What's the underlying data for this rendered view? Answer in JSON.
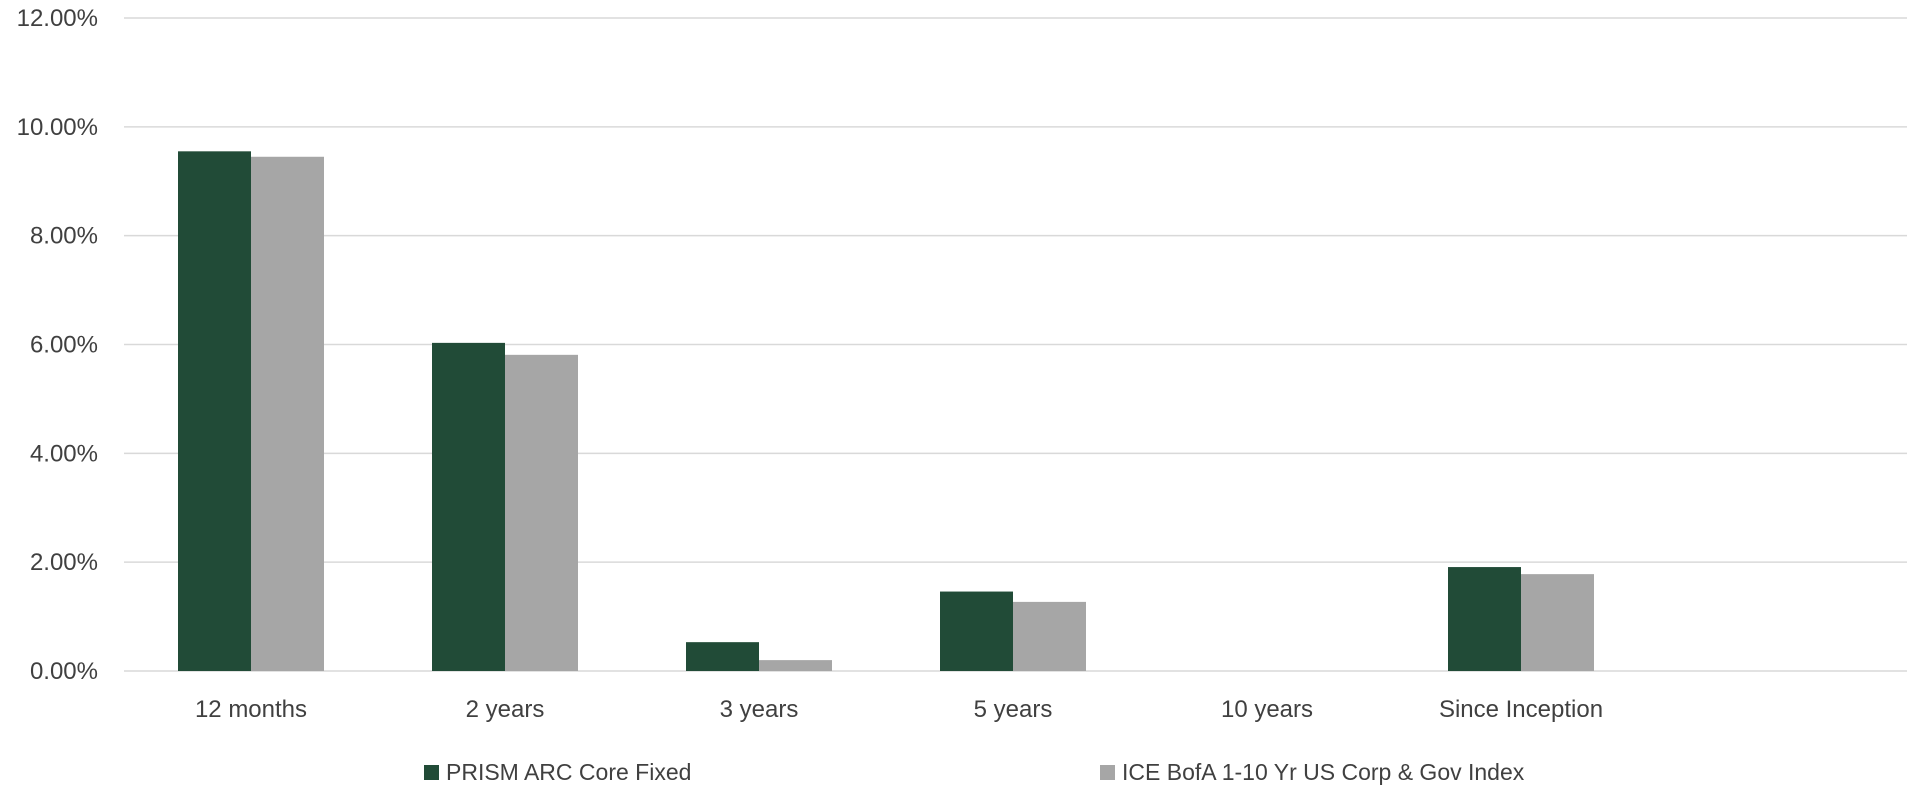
{
  "chart_data": {
    "type": "bar",
    "title": "",
    "xlabel": "",
    "ylabel": "",
    "categories": [
      "12 months",
      "2 years",
      "3 years",
      "5 years",
      "10 years",
      "Since Inception"
    ],
    "series": [
      {
        "name": "PRISM ARC Core Fixed",
        "color": "#214B37",
        "values": [
          9.55,
          6.03,
          0.53,
          1.46,
          null,
          1.91
        ]
      },
      {
        "name": "ICE BofA 1-10 Yr US Corp & Gov Index",
        "color": "#A6A6A6",
        "values": [
          9.45,
          5.81,
          0.2,
          1.27,
          null,
          1.78
        ]
      }
    ],
    "ylim": [
      0,
      12
    ],
    "yticks": [
      "0.00%",
      "2.00%",
      "4.00%",
      "6.00%",
      "8.00%",
      "10.00%",
      "12.00%"
    ],
    "grid": true,
    "gridline_color": "#D9D9D9",
    "legend_position": "bottom"
  }
}
